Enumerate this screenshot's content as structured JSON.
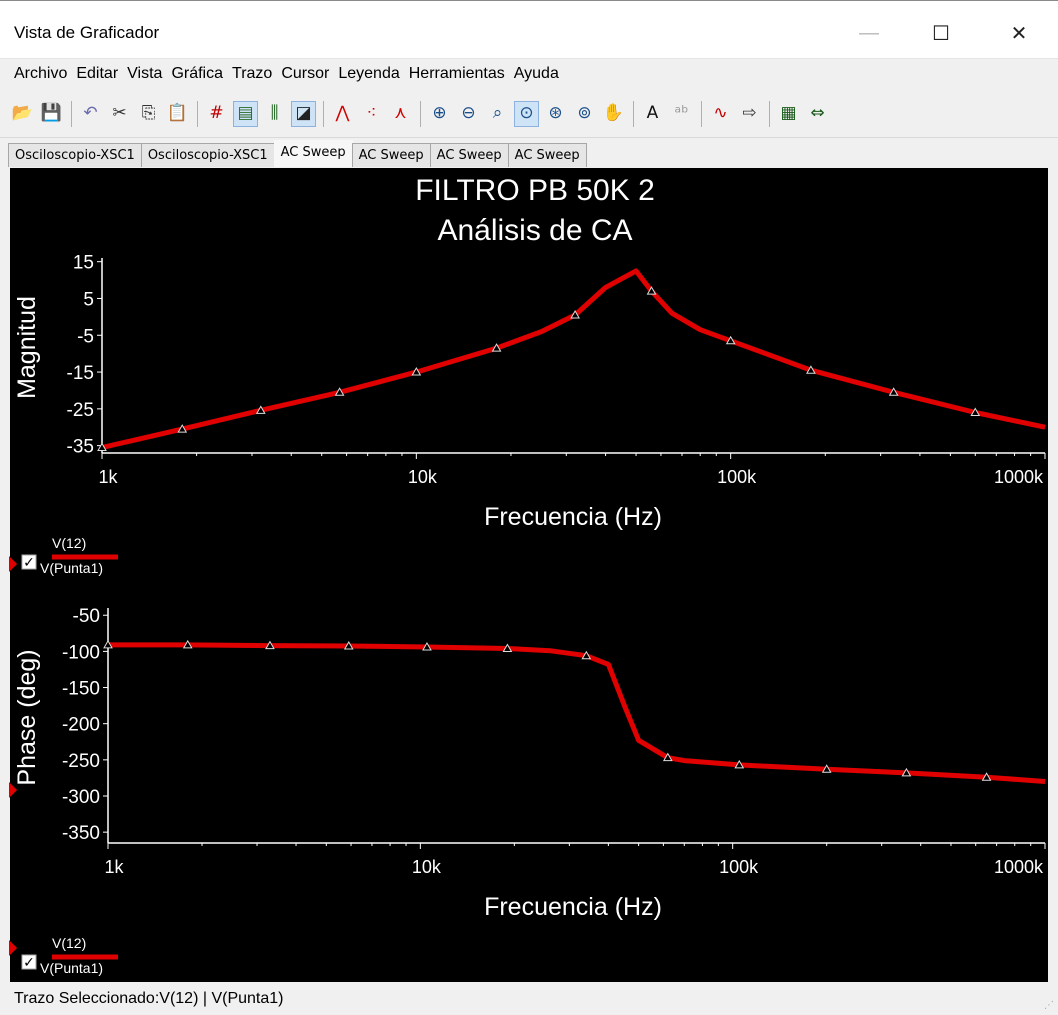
{
  "window": {
    "title": "Vista de Graficador"
  },
  "window_controls": {
    "minimize": "—",
    "maximize": "☐",
    "close": "✕"
  },
  "menu": [
    "Archivo",
    "Editar",
    "Vista",
    "Gráfica",
    "Trazo",
    "Cursor",
    "Leyenda",
    "Herramientas",
    "Ayuda"
  ],
  "toolbar_icons": [
    "open-icon",
    "save-icon",
    "|",
    "undo-icon",
    "cut-icon",
    "copy-icon",
    "paste-icon",
    "|",
    "grid-icon",
    "legend-icon",
    "cursors-icon",
    "overlay-icon",
    "|",
    "line-style-icon",
    "dots-icon",
    "line-dots-icon",
    "|",
    "zoom-in-icon",
    "zoom-out-icon",
    "zoom-area-icon",
    "zoom-full-icon",
    "zoom-x-icon",
    "zoom-y-icon",
    "pan-icon",
    "|",
    "text-icon",
    "label-icon",
    "|",
    "trace-icon",
    "export-icon",
    "|",
    "spreadsheet-icon",
    "merge-icon"
  ],
  "toolbar_active": [
    "legend-icon",
    "overlay-icon",
    "zoom-full-icon"
  ],
  "tabs": [
    {
      "label": "Osciloscopio-XSC1",
      "active": false
    },
    {
      "label": "Osciloscopio-XSC1",
      "active": false
    },
    {
      "label": "AC Sweep",
      "active": true
    },
    {
      "label": "AC Sweep",
      "active": false
    },
    {
      "label": "AC Sweep",
      "active": false
    },
    {
      "label": "AC Sweep",
      "active": false
    }
  ],
  "status": {
    "text": "Trazo Seleccionado:V(12) | V(Punta1)"
  },
  "colors": {
    "trace": "#e00000",
    "background": "#000000",
    "axis": "#ffffff"
  },
  "chart_data": [
    {
      "type": "line",
      "title": "FILTRO PB 50K 2",
      "subtitle": "Análisis de CA",
      "xlabel": "Frecuencia (Hz)",
      "ylabel": "Magnitud",
      "x_scale": "log",
      "xlim": [
        1000,
        1000000
      ],
      "ylim": [
        -37,
        16
      ],
      "x_ticks": [
        1000,
        10000,
        100000,
        1000000
      ],
      "x_tick_labels": [
        "1k",
        "10k",
        "100k",
        "1000k"
      ],
      "y_ticks": [
        15,
        5,
        -5,
        -15,
        -25,
        -35
      ],
      "y_tick_labels": [
        "15",
        "5",
        "-5",
        "-15",
        "-25",
        "-35"
      ],
      "grid": false,
      "legend": {
        "position": "bottom-left",
        "checked": true,
        "entries": [
          "V(12)",
          "V(Punta1)"
        ]
      },
      "series": [
        {
          "name": "V(12) | V(Punta1)",
          "x": [
            1000,
            1800,
            3200,
            5700,
            10000,
            18000,
            25000,
            32000,
            40000,
            50000,
            56000,
            65000,
            80000,
            100000,
            180000,
            330000,
            600000,
            1000000
          ],
          "y": [
            -35.5,
            -30.5,
            -25.4,
            -20.5,
            -15,
            -8.5,
            -4,
            0.5,
            8,
            12.5,
            7,
            1,
            -3.5,
            -6.5,
            -14.5,
            -20.5,
            -26,
            -30
          ]
        }
      ],
      "markers_x": [
        1000,
        1800,
        3200,
        5700,
        10000,
        18000,
        32000,
        56000,
        100000,
        180000,
        330000,
        600000
      ]
    },
    {
      "type": "line",
      "title": "",
      "xlabel": "Frecuencia (Hz)",
      "ylabel": "Phase (deg)",
      "x_scale": "log",
      "xlim": [
        1000,
        1000000
      ],
      "ylim": [
        -365,
        -40
      ],
      "x_ticks": [
        1000,
        10000,
        100000,
        1000000
      ],
      "x_tick_labels": [
        "1k",
        "10k",
        "100k",
        "1000k"
      ],
      "y_ticks": [
        -50,
        -100,
        -150,
        -200,
        -250,
        -300,
        -350
      ],
      "y_tick_labels": [
        "-50",
        "-100",
        "-150",
        "-200",
        "-250",
        "-300",
        "-350"
      ],
      "grid": false,
      "legend": {
        "position": "bottom-left",
        "checked": true,
        "entries": [
          "V(12)",
          "V(Punta1)"
        ]
      },
      "series": [
        {
          "name": "V(12) | V(Punta1)",
          "x": [
            1000,
            1800,
            3300,
            5900,
            10500,
            19000,
            26000,
            34000,
            40000,
            45000,
            50000,
            62000,
            70000,
            105000,
            200000,
            360000,
            650000,
            1000000
          ],
          "y": [
            -91,
            -91,
            -92,
            -92.5,
            -94,
            -96,
            -99,
            -106,
            -118,
            -175,
            -223,
            -247,
            -251,
            -257,
            -263,
            -268,
            -274,
            -280
          ]
        }
      ],
      "markers_x": [
        1000,
        1800,
        3300,
        5900,
        10500,
        19000,
        34000,
        62000,
        105000,
        200000,
        360000,
        650000
      ]
    }
  ]
}
